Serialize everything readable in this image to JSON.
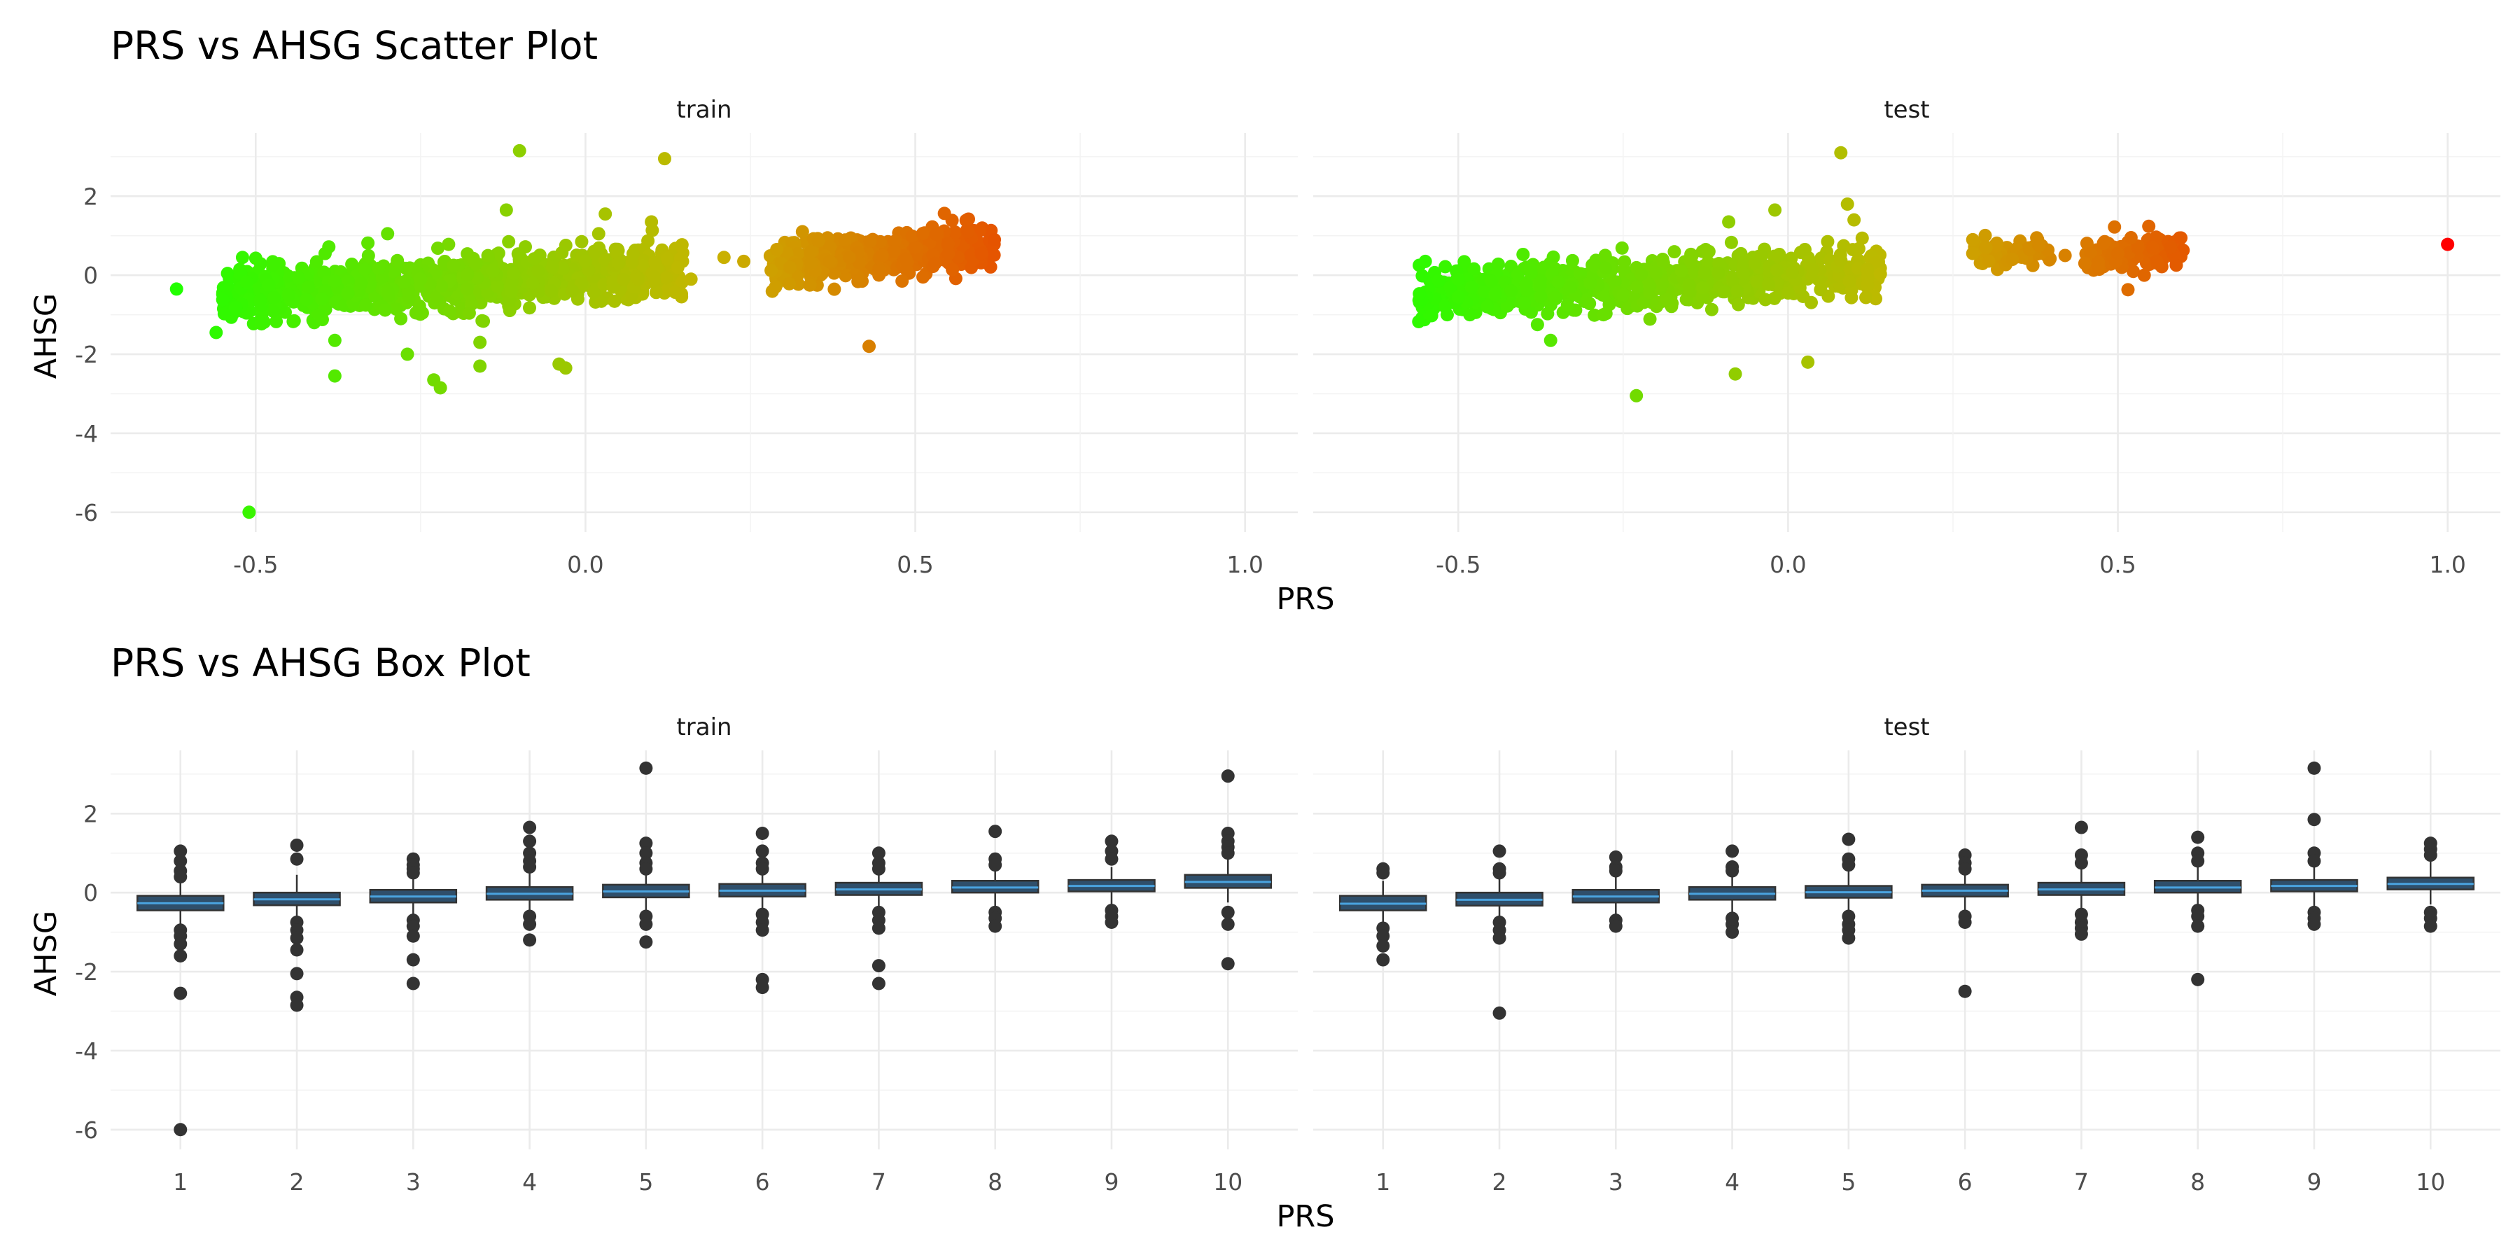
{
  "chart_data": [
    {
      "type": "scatter",
      "title": "PRS vs AHSG Scatter Plot",
      "xlabel": "PRS",
      "ylabel": "AHSG",
      "xlim": [
        -0.72,
        1.08
      ],
      "ylim": [
        -6.5,
        3.6
      ],
      "xticks": [
        -0.5,
        0.0,
        0.5,
        1.0
      ],
      "xtick_labels": [
        "-0.5",
        "0.0",
        "0.5",
        "1.0"
      ],
      "yticks": [
        -6,
        -4,
        -2,
        0,
        2
      ],
      "ytick_labels": [
        "-6",
        "-4",
        "-2",
        "0",
        "2"
      ],
      "color_scale": {
        "low": "#22ff00",
        "mid": "#c8b400",
        "high": "#ff0000",
        "range": [
          -0.62,
          1.0
        ]
      },
      "grid": true,
      "facets": [
        {
          "name": "train",
          "points": [
            [
              -0.62,
              -0.35
            ],
            [
              -0.56,
              -1.45
            ],
            [
              -0.55,
              -0.62
            ],
            [
              -0.53,
              -0.82
            ],
            [
              -0.52,
              0.45
            ],
            [
              -0.5,
              0.43
            ],
            [
              -0.51,
              -6.0
            ],
            [
              -0.48,
              -0.25
            ],
            [
              -0.45,
              -0.5
            ],
            [
              -0.42,
              -0.3
            ],
            [
              -0.4,
              -0.6
            ],
            [
              -0.38,
              -0.15
            ],
            [
              -0.36,
              -0.45
            ],
            [
              -0.38,
              -1.65
            ],
            [
              -0.38,
              -2.55
            ],
            [
              -0.34,
              -0.2
            ],
            [
              -0.3,
              -0.4
            ],
            [
              -0.3,
              1.05
            ],
            [
              -0.28,
              -1.1
            ],
            [
              -0.27,
              -2.0
            ],
            [
              -0.25,
              -0.1
            ],
            [
              -0.23,
              -2.65
            ],
            [
              -0.22,
              -2.85
            ],
            [
              -0.2,
              0.25
            ],
            [
              -0.18,
              -0.35
            ],
            [
              -0.16,
              -1.7
            ],
            [
              -0.16,
              -2.3
            ],
            [
              -0.14,
              0.1
            ],
            [
              -0.12,
              1.65
            ],
            [
              -0.1,
              3.15
            ],
            [
              -0.08,
              -0.2
            ],
            [
              -0.05,
              0.2
            ],
            [
              -0.04,
              -2.25
            ],
            [
              -0.03,
              -2.35
            ],
            [
              -0.02,
              -0.4
            ],
            [
              0.0,
              0.35
            ],
            [
              0.02,
              1.05
            ],
            [
              0.03,
              1.55
            ],
            [
              0.05,
              0.3
            ],
            [
              0.08,
              -0.1
            ],
            [
              0.1,
              1.35
            ],
            [
              0.12,
              2.95
            ],
            [
              0.14,
              0.2
            ],
            [
              0.16,
              -0.1
            ],
            [
              0.21,
              0.45
            ],
            [
              0.24,
              0.35
            ],
            [
              0.29,
              0.65
            ],
            [
              0.31,
              0.2
            ],
            [
              0.34,
              -0.25
            ],
            [
              0.37,
              0.35
            ],
            [
              0.4,
              0.45
            ],
            [
              0.43,
              -1.8
            ],
            [
              0.45,
              0.5
            ],
            [
              0.48,
              -0.15
            ],
            [
              0.5,
              0.7
            ],
            [
              0.53,
              0.3
            ],
            [
              0.55,
              0.8
            ],
            [
              0.58,
              1.1
            ],
            [
              0.6,
              0.55
            ],
            [
              0.62,
              0.9
            ]
          ],
          "clusters": [
            {
              "x": [
                -0.55,
                0.15
              ],
              "y_center": [
                -0.45,
                0.1
              ],
              "y_spread": 0.33,
              "n": 950
            },
            {
              "x": [
                0.28,
                0.62
              ],
              "y_center": [
                0.25,
                0.75
              ],
              "y_spread": 0.27,
              "n": 380
            }
          ]
        },
        {
          "name": "test",
          "points": [
            [
              -0.55,
              0.35
            ],
            [
              -0.52,
              -0.8
            ],
            [
              -0.5,
              -0.55
            ],
            [
              -0.48,
              -0.3
            ],
            [
              -0.45,
              -0.15
            ],
            [
              -0.42,
              -0.4
            ],
            [
              -0.4,
              -0.7
            ],
            [
              -0.38,
              -1.25
            ],
            [
              -0.36,
              -1.65
            ],
            [
              -0.33,
              -0.3
            ],
            [
              -0.3,
              -0.2
            ],
            [
              -0.28,
              -1.0
            ],
            [
              -0.25,
              -0.5
            ],
            [
              -0.23,
              -3.05
            ],
            [
              -0.2,
              0.05
            ],
            [
              -0.15,
              -0.25
            ],
            [
              -0.12,
              0.6
            ],
            [
              -0.09,
              1.35
            ],
            [
              -0.08,
              -2.5
            ],
            [
              -0.05,
              0.3
            ],
            [
              -0.02,
              1.65
            ],
            [
              0.0,
              -0.45
            ],
            [
              0.03,
              -2.2
            ],
            [
              0.06,
              0.85
            ],
            [
              0.08,
              3.1
            ],
            [
              0.09,
              1.8
            ],
            [
              0.1,
              1.4
            ],
            [
              0.12,
              0.15
            ],
            [
              0.28,
              0.9
            ],
            [
              0.28,
              0.55
            ],
            [
              0.3,
              0.7
            ],
            [
              0.34,
              0.4
            ],
            [
              0.38,
              0.75
            ],
            [
              0.42,
              0.5
            ],
            [
              0.45,
              0.3
            ],
            [
              0.48,
              0.85
            ],
            [
              0.5,
              0.55
            ],
            [
              0.52,
              0.95
            ],
            [
              0.54,
              0.0
            ],
            [
              0.56,
              0.3
            ],
            [
              0.58,
              0.7
            ],
            [
              1.0,
              0.78
            ]
          ],
          "clusters": [
            {
              "x": [
                -0.56,
                0.14
              ],
              "y_center": [
                -0.45,
                0.1
              ],
              "y_spread": 0.32,
              "n": 720
            },
            {
              "x": [
                0.28,
                0.4
              ],
              "y_center": [
                0.55,
                0.65
              ],
              "y_spread": 0.18,
              "n": 55
            },
            {
              "x": [
                0.45,
                0.6
              ],
              "y_center": [
                0.5,
                0.75
              ],
              "y_spread": 0.22,
              "n": 110
            }
          ]
        }
      ]
    },
    {
      "type": "box",
      "title": "PRS vs AHSG Box Plot",
      "xlabel": "PRS",
      "ylabel": "AHSG",
      "ylim": [
        -6.5,
        3.6
      ],
      "categories": [
        "1",
        "2",
        "3",
        "4",
        "5",
        "6",
        "7",
        "8",
        "9",
        "10"
      ],
      "yticks": [
        -6,
        -4,
        -2,
        0,
        2
      ],
      "ytick_labels": [
        "-6",
        "-4",
        "-2",
        "0",
        "2"
      ],
      "grid": true,
      "facets": [
        {
          "name": "train",
          "boxes": [
            {
              "q1": -0.45,
              "median": -0.27,
              "q3": -0.08,
              "lo": -0.9,
              "hi": 0.35,
              "outliers": [
                1.05,
                0.8,
                0.55,
                0.4,
                -0.95,
                -1.1,
                -1.3,
                -1.6,
                -2.55,
                -6.0
              ]
            },
            {
              "q1": -0.32,
              "median": -0.17,
              "q3": 0.0,
              "lo": -0.7,
              "hi": 0.45,
              "outliers": [
                1.2,
                0.85,
                -0.75,
                -0.95,
                -1.15,
                -1.45,
                -2.05,
                -2.65,
                -2.85
              ]
            },
            {
              "q1": -0.25,
              "median": -0.1,
              "q3": 0.07,
              "lo": -0.6,
              "hi": 0.45,
              "outliers": [
                0.85,
                0.7,
                0.6,
                0.5,
                -0.7,
                -0.85,
                -1.1,
                -1.7,
                -2.3
              ]
            },
            {
              "q1": -0.18,
              "median": -0.03,
              "q3": 0.14,
              "lo": -0.55,
              "hi": 0.5,
              "outliers": [
                1.65,
                1.3,
                1.0,
                0.8,
                0.65,
                -0.6,
                -0.8,
                -1.2
              ]
            },
            {
              "q1": -0.12,
              "median": 0.03,
              "q3": 0.2,
              "lo": -0.5,
              "hi": 0.55,
              "outliers": [
                3.15,
                1.25,
                1.0,
                0.75,
                0.6,
                -0.6,
                -0.8,
                -1.25
              ]
            },
            {
              "q1": -0.1,
              "median": 0.05,
              "q3": 0.22,
              "lo": -0.45,
              "hi": 0.55,
              "outliers": [
                1.5,
                1.05,
                0.75,
                0.6,
                -0.55,
                -0.75,
                -0.95,
                -2.2,
                -2.4
              ]
            },
            {
              "q1": -0.06,
              "median": 0.08,
              "q3": 0.25,
              "lo": -0.4,
              "hi": 0.55,
              "outliers": [
                1.0,
                0.75,
                0.6,
                -0.5,
                -0.7,
                -0.9,
                -1.85,
                -2.3
              ]
            },
            {
              "q1": 0.0,
              "median": 0.13,
              "q3": 0.3,
              "lo": -0.4,
              "hi": 0.6,
              "outliers": [
                1.55,
                0.85,
                0.7,
                -0.5,
                -0.65,
                -0.85
              ]
            },
            {
              "q1": 0.03,
              "median": 0.17,
              "q3": 0.32,
              "lo": -0.35,
              "hi": 0.65,
              "outliers": [
                1.3,
                1.05,
                0.85,
                -0.45,
                -0.6,
                -0.75
              ]
            },
            {
              "q1": 0.12,
              "median": 0.27,
              "q3": 0.45,
              "lo": -0.25,
              "hi": 0.85,
              "outliers": [
                2.95,
                1.5,
                1.3,
                1.15,
                1.0,
                -0.5,
                -0.8,
                -1.8
              ]
            }
          ]
        },
        {
          "name": "test",
          "boxes": [
            {
              "q1": -0.45,
              "median": -0.28,
              "q3": -0.08,
              "lo": -0.8,
              "hi": 0.3,
              "outliers": [
                0.6,
                0.5,
                -0.9,
                -1.1,
                -1.35,
                -1.7
              ]
            },
            {
              "q1": -0.33,
              "median": -0.18,
              "q3": 0.0,
              "lo": -0.7,
              "hi": 0.45,
              "outliers": [
                1.05,
                0.6,
                0.5,
                -0.75,
                -0.95,
                -1.15,
                -3.05
              ]
            },
            {
              "q1": -0.25,
              "median": -0.1,
              "q3": 0.07,
              "lo": -0.6,
              "hi": 0.45,
              "outliers": [
                0.9,
                0.65,
                0.55,
                -0.7,
                -0.85
              ]
            },
            {
              "q1": -0.18,
              "median": -0.03,
              "q3": 0.14,
              "lo": -0.55,
              "hi": 0.5,
              "outliers": [
                1.05,
                0.65,
                0.55,
                -0.65,
                -0.8,
                -1.0
              ]
            },
            {
              "q1": -0.13,
              "median": 0.01,
              "q3": 0.17,
              "lo": -0.5,
              "hi": 0.55,
              "outliers": [
                1.35,
                0.85,
                0.7,
                -0.6,
                -0.8,
                -0.95,
                -1.15
              ]
            },
            {
              "q1": -0.1,
              "median": 0.05,
              "q3": 0.2,
              "lo": -0.45,
              "hi": 0.55,
              "outliers": [
                0.95,
                0.75,
                0.6,
                -0.6,
                -0.75,
                -2.5
              ]
            },
            {
              "q1": -0.06,
              "median": 0.08,
              "q3": 0.25,
              "lo": -0.45,
              "hi": 0.6,
              "outliers": [
                1.65,
                0.95,
                0.75,
                -0.55,
                -0.75,
                -0.9,
                -1.05
              ]
            },
            {
              "q1": 0.0,
              "median": 0.13,
              "q3": 0.3,
              "lo": -0.4,
              "hi": 0.65,
              "outliers": [
                1.4,
                1.0,
                0.8,
                -0.45,
                -0.6,
                -0.85,
                -2.2
              ]
            },
            {
              "q1": 0.03,
              "median": 0.17,
              "q3": 0.32,
              "lo": -0.35,
              "hi": 0.65,
              "outliers": [
                3.15,
                1.85,
                1.0,
                0.8,
                -0.5,
                -0.65,
                -0.8
              ]
            },
            {
              "q1": 0.08,
              "median": 0.22,
              "q3": 0.38,
              "lo": -0.3,
              "hi": 0.8,
              "outliers": [
                1.25,
                1.1,
                0.95,
                -0.5,
                -0.65,
                -0.85
              ]
            }
          ]
        }
      ]
    }
  ]
}
